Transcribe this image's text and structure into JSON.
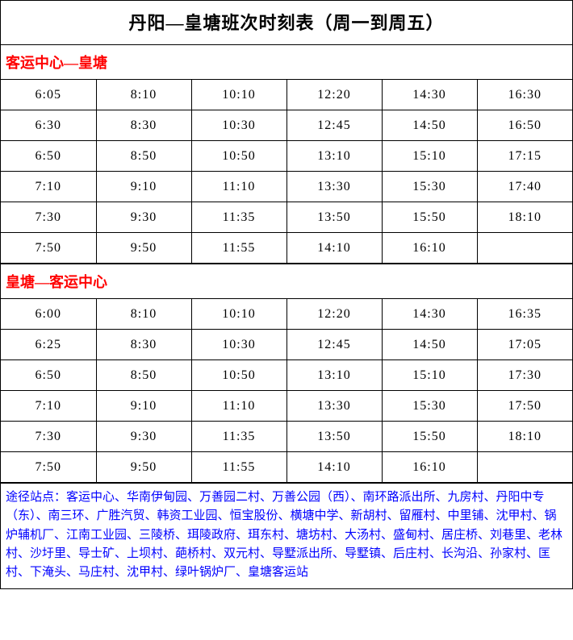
{
  "title": "丹阳—皇塘班次时刻表（周一到周五）",
  "colors": {
    "header": "#ff0000",
    "notes": "#0000ff",
    "border": "#000000",
    "background": "#ffffff"
  },
  "sections": [
    {
      "header": "客运中心—皇塘",
      "rows": [
        [
          "6:05",
          "8:10",
          "10:10",
          "12:20",
          "14:30",
          "16:30"
        ],
        [
          "6:30",
          "8:30",
          "10:30",
          "12:45",
          "14:50",
          "16:50"
        ],
        [
          "6:50",
          "8:50",
          "10:50",
          "13:10",
          "15:10",
          "17:15"
        ],
        [
          "7:10",
          "9:10",
          "11:10",
          "13:30",
          "15:30",
          "17:40"
        ],
        [
          "7:30",
          "9:30",
          "11:35",
          "13:50",
          "15:50",
          "18:10"
        ],
        [
          "7:50",
          "9:50",
          "11:55",
          "14:10",
          "16:10",
          ""
        ]
      ]
    },
    {
      "header": "皇塘—客运中心",
      "rows": [
        [
          "6:00",
          "8:10",
          "10:10",
          "12:20",
          "14:30",
          "16:35"
        ],
        [
          "6:25",
          "8:30",
          "10:30",
          "12:45",
          "14:50",
          "17:05"
        ],
        [
          "6:50",
          "8:50",
          "10:50",
          "13:10",
          "15:10",
          "17:30"
        ],
        [
          "7:10",
          "9:10",
          "11:10",
          "13:30",
          "15:30",
          "17:50"
        ],
        [
          "7:30",
          "9:30",
          "11:35",
          "13:50",
          "15:50",
          "18:10"
        ],
        [
          "7:50",
          "9:50",
          "11:55",
          "14:10",
          "16:10",
          ""
        ]
      ]
    }
  ],
  "notes": "途径站点：客运中心、华南伊甸园、万善园二村、万善公园（西）、南环路派出所、九房村、丹阳中专（东）、南三环、广胜汽贸、韩资工业园、恒宝股份、横塘中学、新胡村、留雁村、中里铺、沈甲村、锅炉辅机厂、江南工业园、三陵桥、珥陵政府、珥东村、塘坊村、大汤村、盛甸村、居庄桥、刘巷里、老林村、沙圩里、导士矿、上坝村、葩桥村、双元村、导墅派出所、导墅镇、后庄村、长沟沿、孙家村、匡村、下淹头、马庄村、沈甲村、绿叶锅炉厂、皇塘客运站"
}
